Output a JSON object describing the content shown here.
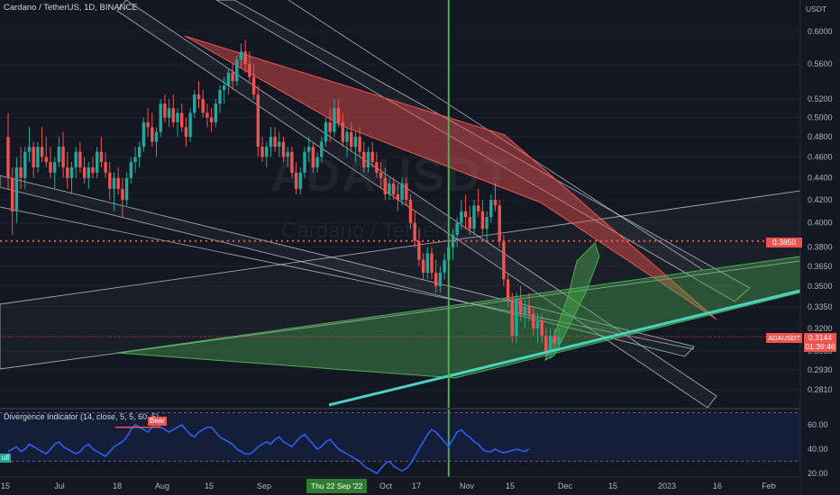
{
  "header": {
    "title": "Cardano / TetherUS, 1D, BINANCE",
    "currency": "USDT"
  },
  "watermark": {
    "symbol": "ADAUSDT",
    "name": "Cardano / TetherUS"
  },
  "colors": {
    "background": "#131722",
    "up": "#26a69a",
    "down": "#ef5350",
    "cursor": "#4caf50",
    "indicator_line": "#2962ff",
    "red_zone": "#ef5350",
    "green_zone": "#4caf50"
  },
  "badges": {
    "level_price": "0.3850",
    "symbol_label": "ADAUSDT",
    "symbol_price": "0.3144",
    "countdown": "01:39:46",
    "cursor_date": "Thu 22 Sep '22"
  },
  "indicator": {
    "title": "Divergence Indicator (14, close, 5, 5, 60, 5)",
    "bear_label": "Bear",
    "bull_label": "ull",
    "y_ticks": [
      "60.00",
      "40.00",
      "20.00"
    ]
  },
  "chart_data": {
    "type": "candlestick",
    "symbol": "ADAUSDT",
    "interval": "1D",
    "y_scale": "log",
    "y_ticks": [
      "0.6000",
      "0.5600",
      "0.5200",
      "0.5000",
      "0.4800",
      "0.4600",
      "0.4400",
      "0.4200",
      "0.4000",
      "0.3800",
      "0.3650",
      "0.3500",
      "0.3350",
      "0.3200",
      "0.3050",
      "0.2930",
      "0.2810"
    ],
    "x_ticks": [
      "15",
      "Jul",
      "18",
      "Aug",
      "15",
      "Sep",
      "Oct",
      "17",
      "Nov",
      "15",
      "Dec",
      "15",
      "2023",
      "16",
      "Feb"
    ],
    "level": 0.385,
    "last_price": 0.3144,
    "cursor_date": "2022-09-22",
    "ohlc_first_date": "2022-06-10",
    "ohlc": [
      [
        0.48,
        0.505,
        0.43,
        0.44
      ],
      [
        0.44,
        0.45,
        0.39,
        0.41
      ],
      [
        0.41,
        0.46,
        0.4,
        0.45
      ],
      [
        0.45,
        0.47,
        0.43,
        0.44
      ],
      [
        0.44,
        0.47,
        0.43,
        0.465
      ],
      [
        0.465,
        0.49,
        0.455,
        0.47
      ],
      [
        0.47,
        0.475,
        0.44,
        0.45
      ],
      [
        0.45,
        0.475,
        0.445,
        0.47
      ],
      [
        0.47,
        0.49,
        0.455,
        0.46
      ],
      [
        0.46,
        0.48,
        0.45,
        0.455
      ],
      [
        0.455,
        0.47,
        0.44,
        0.445
      ],
      [
        0.445,
        0.46,
        0.43,
        0.455
      ],
      [
        0.455,
        0.48,
        0.45,
        0.47
      ],
      [
        0.47,
        0.485,
        0.44,
        0.45
      ],
      [
        0.45,
        0.465,
        0.43,
        0.44
      ],
      [
        0.44,
        0.455,
        0.425,
        0.45
      ],
      [
        0.45,
        0.47,
        0.44,
        0.465
      ],
      [
        0.465,
        0.475,
        0.445,
        0.45
      ],
      [
        0.45,
        0.46,
        0.435,
        0.44
      ],
      [
        0.44,
        0.455,
        0.43,
        0.45
      ],
      [
        0.45,
        0.46,
        0.44,
        0.445
      ],
      [
        0.445,
        0.47,
        0.44,
        0.465
      ],
      [
        0.465,
        0.48,
        0.45,
        0.455
      ],
      [
        0.455,
        0.465,
        0.44,
        0.445
      ],
      [
        0.445,
        0.455,
        0.42,
        0.43
      ],
      [
        0.43,
        0.445,
        0.41,
        0.44
      ],
      [
        0.44,
        0.45,
        0.425,
        0.43
      ],
      [
        0.43,
        0.44,
        0.405,
        0.42
      ],
      [
        0.42,
        0.445,
        0.415,
        0.44
      ],
      [
        0.44,
        0.46,
        0.435,
        0.455
      ],
      [
        0.455,
        0.47,
        0.445,
        0.46
      ],
      [
        0.46,
        0.475,
        0.45,
        0.47
      ],
      [
        0.47,
        0.5,
        0.465,
        0.495
      ],
      [
        0.495,
        0.51,
        0.48,
        0.49
      ],
      [
        0.49,
        0.505,
        0.47,
        0.475
      ],
      [
        0.475,
        0.49,
        0.46,
        0.485
      ],
      [
        0.485,
        0.52,
        0.48,
        0.515
      ],
      [
        0.515,
        0.525,
        0.495,
        0.5
      ],
      [
        0.5,
        0.52,
        0.49,
        0.51
      ],
      [
        0.51,
        0.525,
        0.49,
        0.495
      ],
      [
        0.495,
        0.51,
        0.48,
        0.505
      ],
      [
        0.505,
        0.515,
        0.485,
        0.49
      ],
      [
        0.49,
        0.5,
        0.47,
        0.48
      ],
      [
        0.48,
        0.51,
        0.475,
        0.505
      ],
      [
        0.505,
        0.53,
        0.5,
        0.525
      ],
      [
        0.525,
        0.54,
        0.51,
        0.52
      ],
      [
        0.52,
        0.53,
        0.5,
        0.505
      ],
      [
        0.505,
        0.515,
        0.49,
        0.5
      ],
      [
        0.5,
        0.51,
        0.485,
        0.495
      ],
      [
        0.495,
        0.52,
        0.49,
        0.515
      ],
      [
        0.515,
        0.535,
        0.505,
        0.53
      ],
      [
        0.53,
        0.545,
        0.515,
        0.535
      ],
      [
        0.535,
        0.555,
        0.525,
        0.55
      ],
      [
        0.55,
        0.56,
        0.53,
        0.54
      ],
      [
        0.54,
        0.57,
        0.535,
        0.565
      ],
      [
        0.565,
        0.585,
        0.555,
        0.575
      ],
      [
        0.575,
        0.59,
        0.55,
        0.56
      ],
      [
        0.56,
        0.575,
        0.54,
        0.545
      ],
      [
        0.545,
        0.56,
        0.52,
        0.525
      ],
      [
        0.525,
        0.535,
        0.46,
        0.47
      ],
      [
        0.47,
        0.48,
        0.455,
        0.46
      ],
      [
        0.46,
        0.475,
        0.45,
        0.47
      ],
      [
        0.47,
        0.49,
        0.46,
        0.48
      ],
      [
        0.48,
        0.49,
        0.465,
        0.47
      ],
      [
        0.47,
        0.485,
        0.46,
        0.475
      ],
      [
        0.475,
        0.48,
        0.455,
        0.46
      ],
      [
        0.46,
        0.47,
        0.45,
        0.465
      ],
      [
        0.465,
        0.47,
        0.44,
        0.445
      ],
      [
        0.445,
        0.455,
        0.425,
        0.43
      ],
      [
        0.43,
        0.45,
        0.425,
        0.445
      ],
      [
        0.445,
        0.47,
        0.44,
        0.465
      ],
      [
        0.465,
        0.48,
        0.455,
        0.47
      ],
      [
        0.47,
        0.475,
        0.445,
        0.45
      ],
      [
        0.45,
        0.465,
        0.445,
        0.46
      ],
      [
        0.46,
        0.48,
        0.455,
        0.475
      ],
      [
        0.475,
        0.5,
        0.47,
        0.495
      ],
      [
        0.495,
        0.51,
        0.475,
        0.485
      ],
      [
        0.485,
        0.52,
        0.48,
        0.51
      ],
      [
        0.51,
        0.52,
        0.49,
        0.495
      ],
      [
        0.495,
        0.505,
        0.47,
        0.475
      ],
      [
        0.475,
        0.49,
        0.46,
        0.485
      ],
      [
        0.485,
        0.495,
        0.465,
        0.47
      ],
      [
        0.47,
        0.485,
        0.455,
        0.48
      ],
      [
        0.48,
        0.49,
        0.46,
        0.465
      ],
      [
        0.465,
        0.475,
        0.445,
        0.45
      ],
      [
        0.45,
        0.47,
        0.445,
        0.465
      ],
      [
        0.465,
        0.475,
        0.45,
        0.455
      ],
      [
        0.455,
        0.465,
        0.44,
        0.445
      ],
      [
        0.445,
        0.455,
        0.43,
        0.44
      ],
      [
        0.44,
        0.45,
        0.42,
        0.425
      ],
      [
        0.425,
        0.44,
        0.42,
        0.435
      ],
      [
        0.435,
        0.44,
        0.42,
        0.425
      ],
      [
        0.425,
        0.435,
        0.41,
        0.42
      ],
      [
        0.42,
        0.44,
        0.415,
        0.435
      ],
      [
        0.435,
        0.44,
        0.415,
        0.42
      ],
      [
        0.42,
        0.425,
        0.395,
        0.4
      ],
      [
        0.4,
        0.41,
        0.38,
        0.385
      ],
      [
        0.385,
        0.395,
        0.365,
        0.37
      ],
      [
        0.37,
        0.375,
        0.355,
        0.36
      ],
      [
        0.36,
        0.38,
        0.355,
        0.375
      ],
      [
        0.375,
        0.38,
        0.355,
        0.36
      ],
      [
        0.36,
        0.37,
        0.345,
        0.35
      ],
      [
        0.35,
        0.365,
        0.345,
        0.36
      ],
      [
        0.36,
        0.375,
        0.355,
        0.37
      ],
      [
        0.37,
        0.385,
        0.365,
        0.38
      ],
      [
        0.38,
        0.395,
        0.37,
        0.39
      ],
      [
        0.39,
        0.405,
        0.38,
        0.4
      ],
      [
        0.4,
        0.42,
        0.395,
        0.41
      ],
      [
        0.41,
        0.425,
        0.395,
        0.405
      ],
      [
        0.405,
        0.415,
        0.39,
        0.395
      ],
      [
        0.395,
        0.42,
        0.39,
        0.415
      ],
      [
        0.415,
        0.43,
        0.405,
        0.41
      ],
      [
        0.41,
        0.42,
        0.39,
        0.395
      ],
      [
        0.395,
        0.41,
        0.385,
        0.405
      ],
      [
        0.405,
        0.425,
        0.4,
        0.42
      ],
      [
        0.42,
        0.435,
        0.41,
        0.415
      ],
      [
        0.415,
        0.42,
        0.38,
        0.385
      ],
      [
        0.385,
        0.39,
        0.35,
        0.355
      ],
      [
        0.355,
        0.36,
        0.335,
        0.34
      ],
      [
        0.34,
        0.345,
        0.31,
        0.315
      ],
      [
        0.315,
        0.345,
        0.31,
        0.34
      ],
      [
        0.34,
        0.35,
        0.325,
        0.33
      ],
      [
        0.33,
        0.34,
        0.32,
        0.335
      ],
      [
        0.335,
        0.345,
        0.325,
        0.33
      ],
      [
        0.33,
        0.335,
        0.315,
        0.32
      ],
      [
        0.32,
        0.33,
        0.31,
        0.325
      ],
      [
        0.325,
        0.33,
        0.31,
        0.315
      ],
      [
        0.315,
        0.32,
        0.3,
        0.305
      ],
      [
        0.305,
        0.32,
        0.3,
        0.315
      ],
      [
        0.315,
        0.32,
        0.305,
        0.31
      ],
      [
        0.31,
        0.32,
        0.305,
        0.314
      ]
    ],
    "indicator": {
      "name": "Divergence Indicator",
      "ticks": [
        60,
        40,
        20
      ],
      "values": [
        38,
        40,
        42,
        38,
        40,
        44,
        42,
        40,
        38,
        36,
        40,
        44,
        46,
        42,
        40,
        38,
        36,
        38,
        42,
        44,
        40,
        38,
        36,
        34,
        38,
        42,
        44,
        46,
        50,
        56,
        60,
        58,
        56,
        54,
        58,
        60,
        58,
        56,
        54,
        56,
        58,
        60,
        56,
        52,
        50,
        54,
        56,
        58,
        58,
        54,
        50,
        48,
        46,
        44,
        40,
        38,
        36,
        36,
        38,
        42,
        44,
        46,
        44,
        48,
        50,
        46,
        44,
        42,
        46,
        50,
        52,
        48,
        44,
        40,
        42,
        46,
        48,
        44,
        40,
        38,
        36,
        34,
        32,
        30,
        26,
        24,
        22,
        20,
        24,
        28,
        30,
        26,
        24,
        22,
        24,
        28,
        34,
        40,
        46,
        52,
        56,
        54,
        50,
        46,
        42,
        48,
        54,
        56,
        52,
        50,
        46,
        44,
        40,
        38,
        38,
        40,
        38,
        37,
        38,
        39,
        40,
        39,
        38,
        40
      ]
    }
  }
}
